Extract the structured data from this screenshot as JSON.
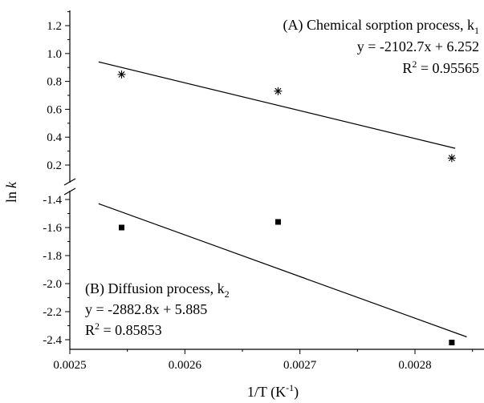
{
  "chart_data": {
    "type": "scatter",
    "xlabel": "1/T (K",
    "xlabel_sup": "-1",
    "xlabel_end": ")",
    "ylabel": "ln",
    "ylabel_italic": "k",
    "xlim": [
      0.0025,
      0.00285
    ],
    "x_ticks": [
      "0.0025",
      "0.0026",
      "0.0027",
      "0.0028"
    ],
    "x_tick_values": [
      0.0025,
      0.0026,
      0.0027,
      0.0028
    ],
    "axis_break": true,
    "upper_panel": {
      "ylim": [
        0.1,
        1.3
      ],
      "y_ticks": [
        "0.2",
        "0.4",
        "0.6",
        "0.8",
        "1.0",
        "1.2"
      ],
      "y_tick_values": [
        0.2,
        0.4,
        0.6,
        0.8,
        1.0,
        1.2
      ],
      "marker": "asterisk",
      "points": [
        {
          "x": 0.002545,
          "y": 0.85
        },
        {
          "x": 0.002681,
          "y": 0.73
        },
        {
          "x": 0.002832,
          "y": 0.25
        }
      ],
      "fit_line": {
        "x": [
          0.002525,
          0.002835
        ],
        "y": [
          0.94,
          0.32
        ]
      },
      "annotation": {
        "line1": "(A) Chemical sorption process, k",
        "line1_sub": "1",
        "line2": "y = -2102.7x + 6.252",
        "line3_prefix": "R",
        "line3_sup": "2",
        "line3_rest": " = 0.95565"
      }
    },
    "lower_panel": {
      "ylim": [
        -2.52,
        -1.3
      ],
      "y_ticks": [
        "-1.4",
        "-1.6",
        "-1.8",
        "-2.0",
        "-2.2",
        "-2.4"
      ],
      "y_tick_values": [
        -1.4,
        -1.6,
        -1.8,
        -2.0,
        -2.2,
        -2.4
      ],
      "marker": "square",
      "points": [
        {
          "x": 0.002545,
          "y": -1.6
        },
        {
          "x": 0.002681,
          "y": -1.56
        },
        {
          "x": 0.002832,
          "y": -2.42
        }
      ],
      "fit_line": {
        "x": [
          0.002525,
          0.002845
        ],
        "y": [
          -1.43,
          -2.38
        ]
      },
      "annotation": {
        "line1": "(B) Diffusion process, k",
        "line1_sub": "2",
        "line2": "y = -2882.8x + 5.885",
        "line3_prefix": "R",
        "line3_sup": "2",
        "line3_rest": " = 0.85853"
      }
    }
  }
}
